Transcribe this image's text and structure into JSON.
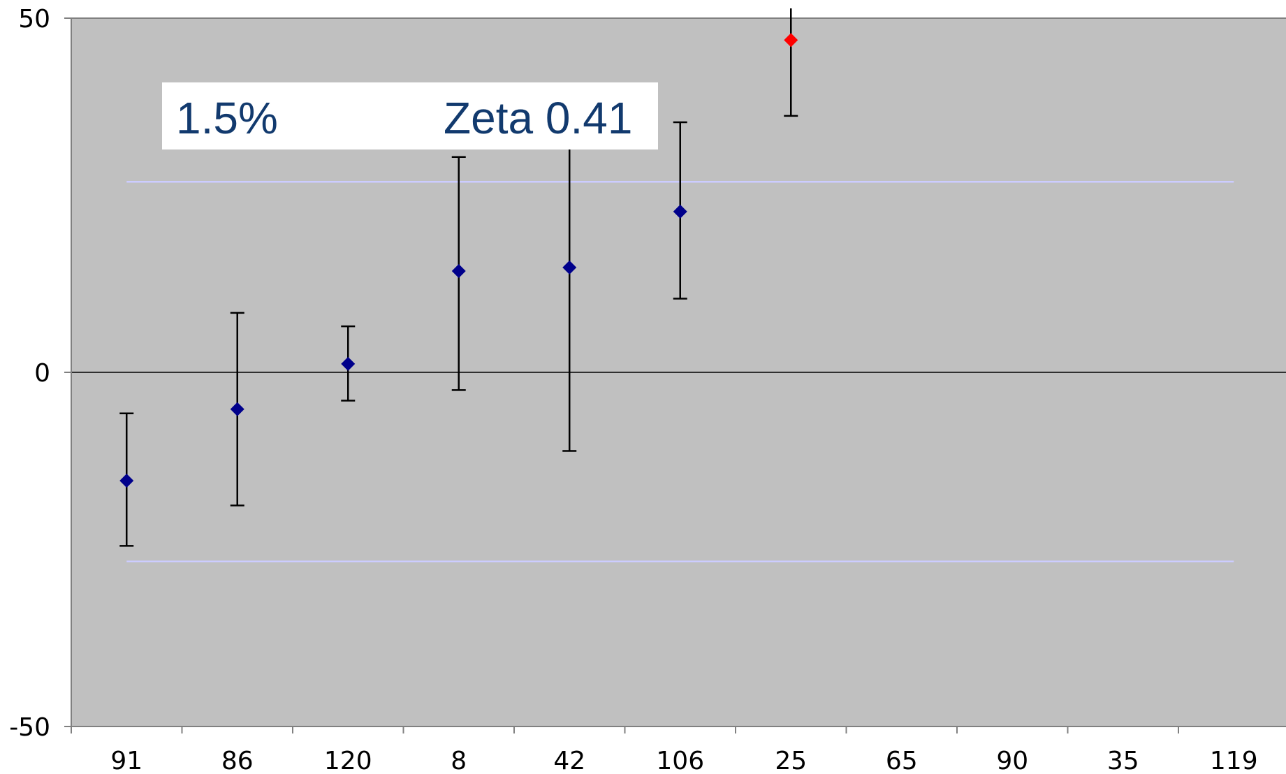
{
  "chart_data": {
    "type": "scatter",
    "title": "",
    "xlabel": "",
    "ylabel": "",
    "categories": [
      "91",
      "86",
      "120",
      "8",
      "42",
      "106",
      "25",
      "65",
      "90",
      "35",
      "119"
    ],
    "ylim": [
      -50,
      50
    ],
    "yticks": [
      -50,
      0,
      50
    ],
    "grid": false,
    "plot_background": "#c0c0c0",
    "series": [
      {
        "color": "#00008b",
        "points": [
          {
            "category": "91",
            "y": -15.3,
            "err_low": -24.5,
            "err_high": -5.8
          },
          {
            "category": "86",
            "y": -5.2,
            "err_low": -18.8,
            "err_high": 8.4
          },
          {
            "category": "120",
            "y": 1.2,
            "err_low": -4.0,
            "err_high": 6.5
          },
          {
            "category": "8",
            "y": 14.3,
            "err_low": -2.5,
            "err_high": 30.4
          },
          {
            "category": "42",
            "y": 14.8,
            "err_low": -11.1,
            "err_high": 35.0
          },
          {
            "category": "106",
            "y": 22.7,
            "err_low": 10.4,
            "err_high": 35.3
          }
        ]
      },
      {
        "color": "#ff0000",
        "points": [
          {
            "category": "25",
            "y": 46.9,
            "err_low": 36.2,
            "err_high": 51.0
          }
        ]
      }
    ],
    "reference_lines": [
      {
        "y": 26.9,
        "color": "#ccccff"
      },
      {
        "y": -26.7,
        "color": "#ccccff"
      }
    ],
    "annotation": {
      "left_text": "1.5%",
      "right_text": "Zeta 0.41",
      "background": "#ffffff",
      "text_color": "#123a6e"
    }
  }
}
